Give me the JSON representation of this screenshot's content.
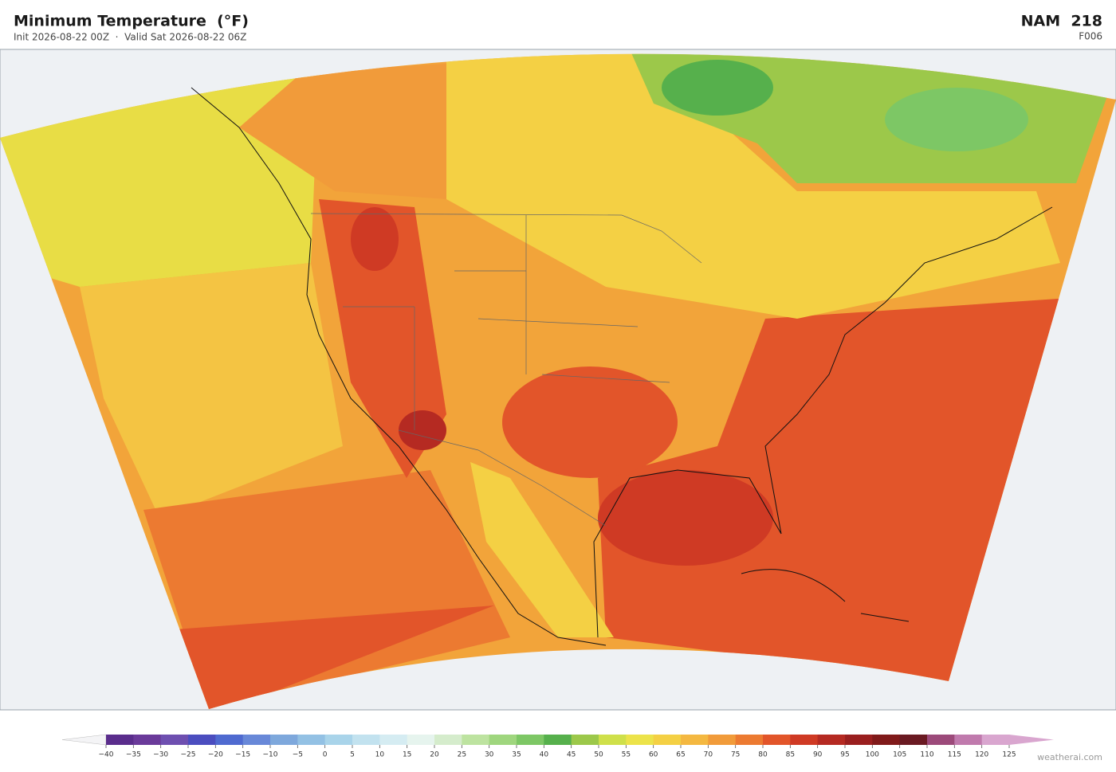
{
  "header": {
    "title": "Minimum Temperature  (°F)",
    "subtitle": "Init 2026-08-22 00Z  ·  Valid Sat 2026-08-22 06Z",
    "model": "NAM  218",
    "forecast_hour": "F006"
  },
  "colorbar": {
    "ticks": [
      {
        "value": -40,
        "label": "−40"
      },
      {
        "value": -35,
        "label": "−35"
      },
      {
        "value": -30,
        "label": "−30"
      },
      {
        "value": -25,
        "label": "−25"
      },
      {
        "value": -20,
        "label": "−20"
      },
      {
        "value": -15,
        "label": "−15"
      },
      {
        "value": -10,
        "label": "−10"
      },
      {
        "value": -5,
        "label": "−5"
      },
      0,
      5,
      10,
      15,
      20,
      25,
      30,
      35,
      40,
      45,
      50,
      55,
      60,
      65,
      70,
      75,
      80,
      85,
      90,
      95,
      100,
      105,
      110,
      115,
      120,
      125
    ],
    "colors": [
      "#5a2d8c",
      "#6a3a9a",
      "#6e4fb0",
      "#4b4dbf",
      "#4f6ad0",
      "#6888d8",
      "#7ea8dc",
      "#93c1e4",
      "#a9d4ea",
      "#c2e2ef",
      "#d5ecf2",
      "#e6f4ee",
      "#d5eccc",
      "#bde3a0",
      "#9fd67e",
      "#7dc765",
      "#56b04c",
      "#9cc84a",
      "#cfe04a",
      "#ece34a",
      "#f4d044",
      "#f4b841",
      "#f19b3a",
      "#ec7a31",
      "#e2552a",
      "#cf3a24",
      "#b52a22",
      "#9a1f1f",
      "#801a1a",
      "#6a1a22",
      "#9c4a7a",
      "#c07aad",
      "#d9a6cf"
    ],
    "under_color": "#f4f4f6",
    "over_color": "#d9a6cf"
  },
  "watermark": "weatherai.com"
}
